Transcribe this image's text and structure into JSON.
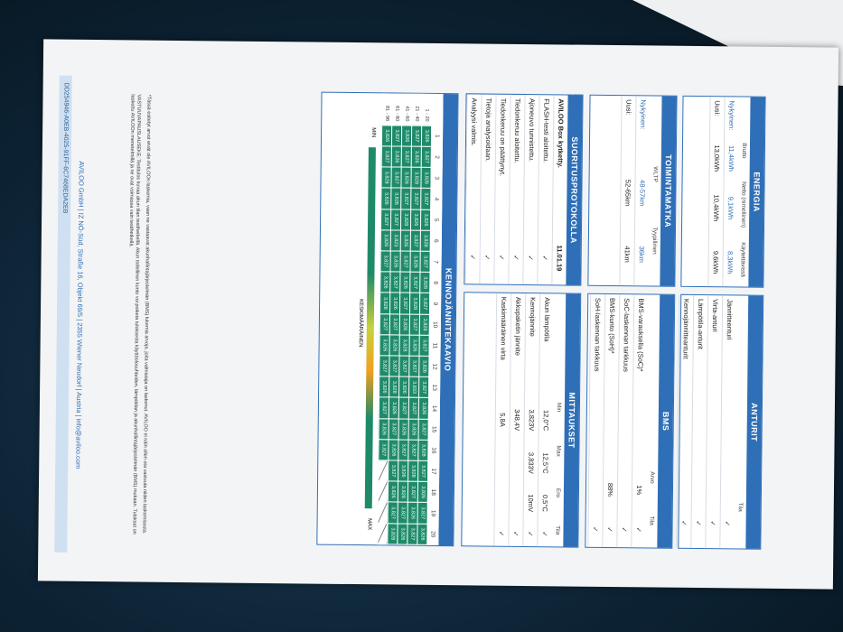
{
  "document_id": "DD254946-A0EB-4025-91FF-6C7468EDA2EB",
  "energia": {
    "title": "ENERGIA",
    "header": [
      "Brutto",
      "Netto (nimellinen)",
      "Käytettävissä"
    ],
    "rows": [
      [
        "Nykyinen:",
        "11,4kWh",
        "9,1kWh",
        "8,3kWh"
      ],
      [
        "Uusi:",
        "13,0kWh",
        "10,4kWh",
        "9,6kWh"
      ]
    ]
  },
  "anturit": {
    "title": "ANTURIT",
    "header": [
      "Tila"
    ],
    "rows": [
      [
        "Jännitteenturi",
        "✓"
      ],
      [
        "Virta-anturi",
        "✓"
      ],
      [
        "Lämpötila-anturit",
        "✓"
      ],
      [
        "Kennojännitteanturit",
        "✓"
      ]
    ]
  },
  "toimintamatka": {
    "title": "TOIMINTAMATKA",
    "header": [
      "WLTP",
      "Tyypillinen"
    ],
    "rows": [
      [
        "Nykyinen:",
        "48-57km",
        "36km"
      ],
      [
        "Uusi:",
        "52-65km",
        "41km"
      ]
    ]
  },
  "bms": {
    "title": "BMS",
    "header": [
      "Arvo",
      "Tila"
    ],
    "rows": [
      [
        "BMS-varauksella (SoC)*",
        "1%",
        "✓"
      ],
      [
        "SoC-laskennan tarkkuus",
        null,
        "✓"
      ],
      [
        "BMS-kunto (SoH)*",
        "88%",
        "✓"
      ],
      [
        "SoH-laskennan tarkkuus",
        null,
        "✓"
      ]
    ]
  },
  "suoritusprotokolla": {
    "title": "SUORITUSPROTOKOLLA",
    "rows": [
      [
        "AVILOO Box kytketty.",
        "11.01.19"
      ],
      [
        "FLASH-testi aloitettu.",
        "✓"
      ],
      [
        "Ajoneuvo tunnistettu.",
        "✓"
      ],
      [
        "Tiedonkeruu aloitettu.",
        "✓"
      ],
      [
        "Tiedonkeruu on päättynyt.",
        "✓"
      ],
      [
        "Tietoja analysoidaan.",
        "✓"
      ],
      [
        "Analyysi valmis.",
        "✓"
      ]
    ]
  },
  "mittaukset": {
    "title": "MITTAUKSET",
    "header": [
      "Min",
      "Max",
      "Ero",
      "Tila"
    ],
    "rows": [
      [
        "Akun lämpötila",
        "12,0°C",
        "12,5°C",
        "0,5°C",
        "✓"
      ],
      [
        "Kennojännite",
        "3,823V",
        "3,833V",
        "10mV",
        "✓"
      ],
      [
        "Akkupaketin jännite",
        "348,4V",
        null,
        null,
        "✓"
      ],
      [
        "Kaskimääräinen virta",
        "5,8A",
        null,
        null,
        "✓"
      ]
    ]
  },
  "kennojannitekaavio": {
    "title": "KENNOJÄNNITEKAAVIO",
    "columns": [
      1,
      2,
      3,
      4,
      5,
      6,
      7,
      8,
      9,
      10,
      11,
      12,
      13,
      14,
      15,
      16,
      17,
      18,
      19,
      20
    ],
    "row_labels": [
      "1 - 20",
      "21 - 40",
      "41 - 60",
      "61 - 80",
      "81 - 96"
    ],
    "cells": [
      "3,826",
      "3,827",
      "3,826",
      "3,827",
      "3,826",
      "3,828",
      "3,827",
      "3,826",
      "3,827",
      "3,828",
      "3,827",
      "3,826",
      "3,827",
      "3,826",
      "3,827",
      "3,828",
      "3,827",
      "3,826",
      "3,827",
      "3,826",
      "3,827",
      "3,826",
      "3,828",
      "3,827",
      "3,826",
      "3,827",
      "3,826",
      "3,827",
      "3,828",
      "3,827",
      "3,826",
      "3,827",
      "3,833",
      "3,827",
      "3,826",
      "3,827",
      "3,828",
      "3,827",
      "3,826",
      "3,827",
      "3,826",
      "3,827",
      "3,826",
      "3,827",
      "3,828",
      "3,826",
      "3,827",
      "3,826",
      "3,827",
      "3,826",
      "3,828",
      "3,827",
      "3,826",
      "3,827",
      "3,826",
      "3,827",
      "3,826",
      "3,828",
      "3,827",
      "3,826",
      "3,827",
      "3,826",
      "3,827",
      "3,826",
      "3,827",
      "3,823",
      "3,826",
      "3,827",
      "3,826",
      "3,827",
      "3,826",
      "3,827",
      "3,828",
      "3,826",
      "3,827",
      "3,826",
      "3,827",
      "3,826",
      "3,827",
      "3,828",
      "3,826",
      "3,827",
      "3,828",
      "3,826",
      "3,827",
      "3,826",
      "3,827",
      "3,826",
      "3,828",
      "3,827",
      "3,826",
      "3,827",
      "3,826",
      "3,827",
      "3,826",
      "3,827"
    ],
    "min_label": "MIN",
    "max_label": "MAX",
    "average_label": "KESKIMÄÄRÄINEN"
  },
  "notes": [
    "*Tässä esitetyt arvot eivät ole AVILOOn laskemia, vaan ne vastaavat akunhallintajärjestelmän (BMS) lukemia arvoja, joita valmistaja on laskenut. AVILOO ei näin ollen ota vastuuta niiden laskemisesta.",
    "VASTUUVAPAUSLAUSEKE: Testitulos kuvaa akun tilan testihetkellä. Akun todellinen kunto voi poiketa tuloksesta käyttöolosuhteiden, lämpötilan ja akunhallintajärjestelmän (BMS) mukaan. Tulokset on laskettu AVILOOn menetelmillä ja ne ovat voimassa vain testihetkellä."
  ],
  "footer": "AVILOO GmbH | IZ NÖ-Süd, Straße 16, Objekt 69/5 | 2355 Wiener Neudorf | Austria | info@aviloo.com"
}
